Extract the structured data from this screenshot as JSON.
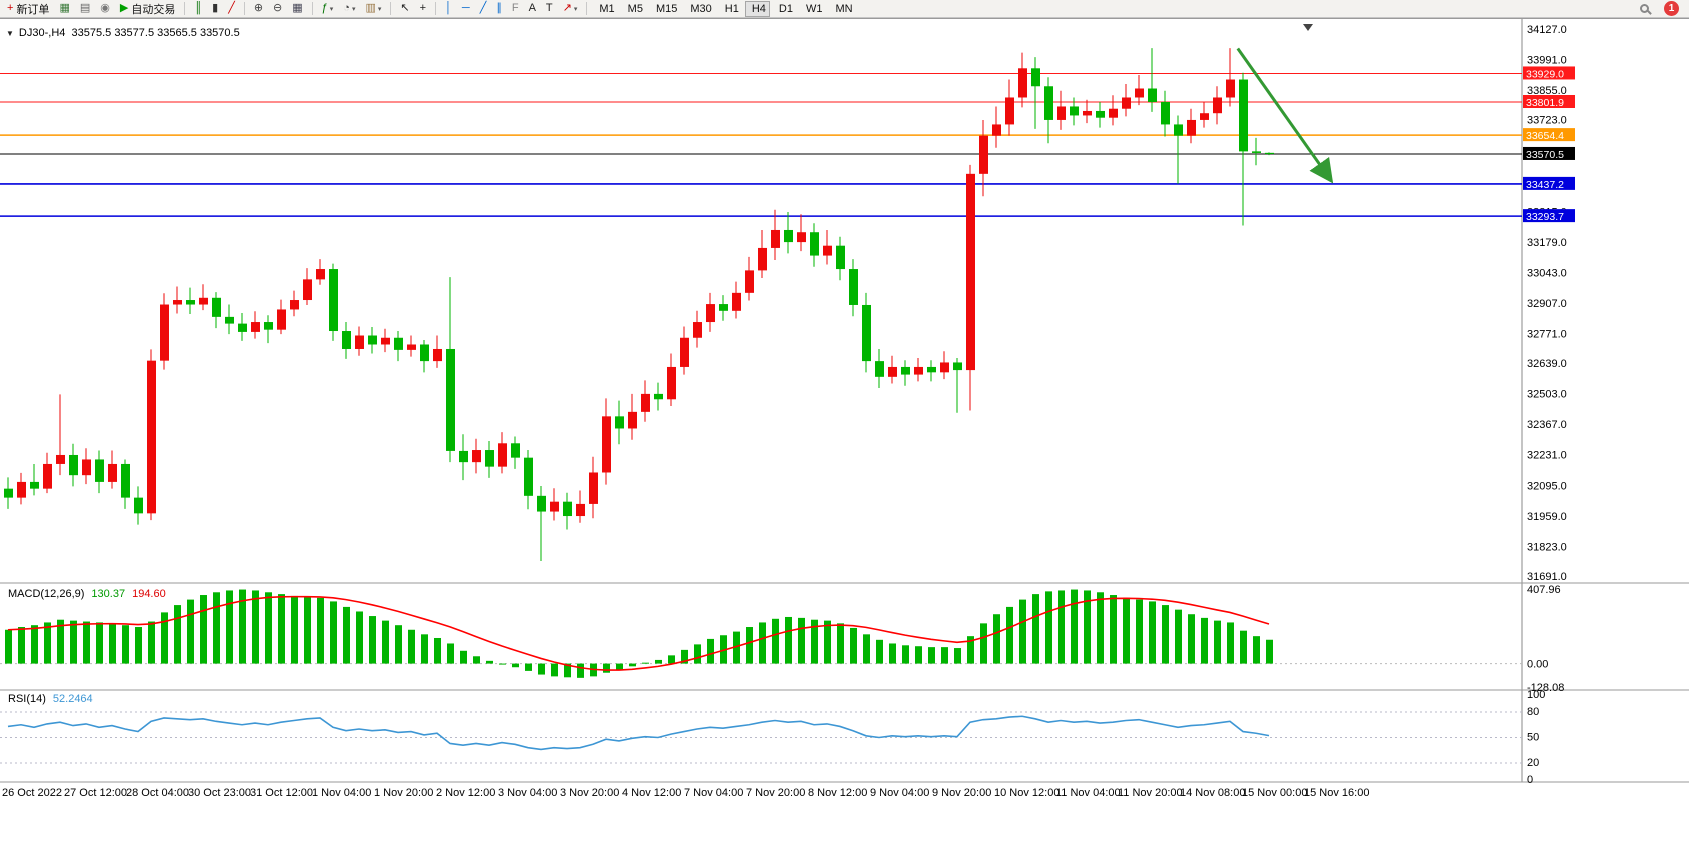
{
  "toolbar": {
    "left_items": [
      {
        "name": "new-order-button",
        "icon": "new-order",
        "label": "新订单"
      },
      {
        "name": "chart-windows-button",
        "icon": "chart-windows"
      },
      {
        "name": "data-window-button",
        "icon": "data-window"
      },
      {
        "name": "navigator-button",
        "icon": "navigator"
      },
      {
        "name": "autotrading-button",
        "icon": "autotrading",
        "label": "自动交易"
      },
      {
        "sep": true
      },
      {
        "name": "bar-chart-button",
        "icon": "bar-chart"
      },
      {
        "name": "candlestick-chart-button",
        "icon": "candlestick-chart"
      },
      {
        "name": "line-chart-button",
        "icon": "line-chart"
      },
      {
        "sep": true
      },
      {
        "name": "zoom-in-button",
        "icon": "zoom-in"
      },
      {
        "name": "zoom-out-button",
        "icon": "zoom-out"
      },
      {
        "name": "tile-windows-button",
        "icon": "tile-windows"
      },
      {
        "sep": true
      },
      {
        "name": "indicators-button",
        "icon": "indicators",
        "caret": true
      },
      {
        "name": "periods-button",
        "icon": "periods",
        "caret": true
      },
      {
        "name": "templates-button",
        "icon": "templates",
        "caret": true
      },
      {
        "sep": true
      },
      {
        "name": "cursor-button",
        "icon": "cursor"
      },
      {
        "name": "crosshair-button",
        "icon": "crosshair"
      },
      {
        "sep": true
      },
      {
        "name": "vertical-line-button",
        "icon": "vertical-line"
      },
      {
        "name": "horizontal-line-button",
        "icon": "horizontal-line"
      },
      {
        "name": "trendline-button",
        "icon": "trendline"
      },
      {
        "name": "channel-button",
        "icon": "channel"
      },
      {
        "name": "fibonacci-button",
        "icon": "fibonacci"
      },
      {
        "name": "text-button",
        "icon": "text"
      },
      {
        "name": "label-button",
        "icon": "label"
      },
      {
        "name": "arrows-button",
        "icon": "arrows",
        "caret": true
      },
      {
        "sep": true
      },
      {
        "name": "tf-m1-button",
        "label": "M1"
      },
      {
        "name": "tf-m5-button",
        "label": "M5"
      },
      {
        "name": "tf-m15-button",
        "label": "M15"
      },
      {
        "name": "tf-m30-button",
        "label": "M30"
      },
      {
        "name": "tf-h1-button",
        "label": "H1"
      },
      {
        "name": "tf-h4-button",
        "label": "H4",
        "active": true
      },
      {
        "name": "tf-d1-button",
        "label": "D1"
      },
      {
        "name": "tf-w1-button",
        "label": "W1"
      },
      {
        "name": "tf-mn-button",
        "label": "MN"
      }
    ],
    "right_items": [
      {
        "name": "search-button",
        "icon": "magnifier"
      },
      {
        "name": "notification-badge",
        "label": "1",
        "badge": true
      }
    ]
  },
  "chart": {
    "title": "DJ30-,H4  33575.5 33577.5 33565.5 33570.5"
  },
  "chart_data": {
    "type": "candlestick",
    "symbol": "DJ30-",
    "timeframe": "H4",
    "current_ohlc": {
      "open": 33575.5,
      "high": 33577.5,
      "low": 33565.5,
      "close": 33570.5
    },
    "ylim": [
      31691.0,
      34127.0
    ],
    "price_ticks": [
      "34127.0",
      "33991.0",
      "33855.0",
      "33723.0",
      "33587.0",
      "33451.0",
      "33315.0",
      "33179.0",
      "33043.0",
      "32907.0",
      "32771.0",
      "32639.0",
      "32503.0",
      "32367.0",
      "32231.0",
      "32095.0",
      "31959.0",
      "31823.0",
      "31691.0"
    ],
    "time_labels": [
      "26 Oct 2022",
      "27 Oct 12:00",
      "28 Oct 04:00",
      "30 Oct 23:00",
      "31 Oct 12:00",
      "1 Nov 04:00",
      "1 Nov 20:00",
      "2 Nov 12:00",
      "3 Nov 04:00",
      "3 Nov 20:00",
      "4 Nov 12:00",
      "7 Nov 04:00",
      "7 Nov 20:00",
      "8 Nov 12:00",
      "9 Nov 04:00",
      "9 Nov 20:00",
      "10 Nov 12:00",
      "11 Nov 04:00",
      "11 Nov 20:00",
      "14 Nov 08:00",
      "15 Nov 00:00",
      "15 Nov 16:00"
    ],
    "colors": {
      "up": "#ee0a0a",
      "down": "#00b400",
      "macd_hist": "#00b400",
      "macd_signal": "#ff0000",
      "rsi_line": "#3d96d4",
      "level_red": "#ff1a1a",
      "level_orange": "#ff9900",
      "level_blue": "#0000dd",
      "current_price_line": "#000000",
      "arrow": "#339933"
    },
    "hlines": [
      {
        "price": 33929.0,
        "color": "red"
      },
      {
        "price": 33801.9,
        "color": "red"
      },
      {
        "price": 33654.4,
        "color": "orange"
      },
      {
        "price": 33437.2,
        "color": "blue"
      },
      {
        "price": 33293.7,
        "color": "blue"
      }
    ],
    "current_price": 33570.5,
    "annotation_arrow": {
      "from": {
        "bar": 94.6,
        "price": 34040
      },
      "to": {
        "bar": 101.8,
        "price": 33450
      }
    },
    "candles_ohlc": [
      [
        32080,
        32130,
        31990,
        32040
      ],
      [
        32040,
        32150,
        32010,
        32110
      ],
      [
        32110,
        32190,
        32050,
        32080
      ],
      [
        32080,
        32240,
        32060,
        32190
      ],
      [
        32190,
        32500,
        32140,
        32230
      ],
      [
        32230,
        32280,
        32090,
        32140
      ],
      [
        32140,
        32260,
        32100,
        32210
      ],
      [
        32210,
        32250,
        32060,
        32110
      ],
      [
        32110,
        32250,
        32080,
        32190
      ],
      [
        32190,
        32210,
        31990,
        32040
      ],
      [
        32040,
        32090,
        31920,
        31970
      ],
      [
        31970,
        32700,
        31940,
        32650
      ],
      [
        32650,
        32950,
        32610,
        32900
      ],
      [
        32900,
        32980,
        32860,
        32920
      ],
      [
        32920,
        32975,
        32858,
        32900
      ],
      [
        32900,
        32990,
        32875,
        32930
      ],
      [
        32930,
        32955,
        32795,
        32845
      ],
      [
        32845,
        32900,
        32768,
        32815
      ],
      [
        32815,
        32862,
        32738,
        32778
      ],
      [
        32778,
        32870,
        32748,
        32822
      ],
      [
        32822,
        32852,
        32728,
        32788
      ],
      [
        32788,
        32922,
        32768,
        32878
      ],
      [
        32878,
        32962,
        32848,
        32920
      ],
      [
        32920,
        33062,
        32898,
        33012
      ],
      [
        33012,
        33102,
        32988,
        33058
      ],
      [
        33058,
        33082,
        32738,
        32782
      ],
      [
        32782,
        32822,
        32658,
        32702
      ],
      [
        32702,
        32802,
        32672,
        32762
      ],
      [
        32762,
        32800,
        32682,
        32722
      ],
      [
        32722,
        32792,
        32688,
        32752
      ],
      [
        32752,
        32782,
        32648,
        32698
      ],
      [
        32698,
        32762,
        32668,
        32722
      ],
      [
        32722,
        32742,
        32598,
        32648
      ],
      [
        32648,
        32762,
        32618,
        32702
      ],
      [
        32702,
        33022,
        32198,
        32248
      ],
      [
        32248,
        32322,
        32118,
        32198
      ],
      [
        32198,
        32302,
        32148,
        32252
      ],
      [
        32252,
        32292,
        32128,
        32178
      ],
      [
        32178,
        32332,
        32148,
        32282
      ],
      [
        32282,
        32312,
        32168,
        32218
      ],
      [
        32218,
        32252,
        31988,
        32048
      ],
      [
        32048,
        32092,
        31758,
        31978
      ],
      [
        31978,
        32082,
        31938,
        32022
      ],
      [
        32022,
        32062,
        31898,
        31958
      ],
      [
        31958,
        32072,
        31928,
        32012
      ],
      [
        32012,
        32222,
        31948,
        32152
      ],
      [
        32152,
        32482,
        32098,
        32402
      ],
      [
        32402,
        32472,
        32278,
        32348
      ],
      [
        32348,
        32502,
        32298,
        32422
      ],
      [
        32422,
        32562,
        32378,
        32502
      ],
      [
        32502,
        32552,
        32428,
        32478
      ],
      [
        32478,
        32682,
        32448,
        32622
      ],
      [
        32622,
        32802,
        32588,
        32752
      ],
      [
        32752,
        32872,
        32708,
        32822
      ],
      [
        32822,
        32952,
        32778,
        32902
      ],
      [
        32902,
        32942,
        32828,
        32872
      ],
      [
        32872,
        33002,
        32838,
        32952
      ],
      [
        32952,
        33112,
        32918,
        33052
      ],
      [
        33052,
        33232,
        33018,
        33152
      ],
      [
        33152,
        33322,
        33098,
        33232
      ],
      [
        33232,
        33312,
        33128,
        33178
      ],
      [
        33178,
        33302,
        33138,
        33222
      ],
      [
        33222,
        33262,
        33068,
        33118
      ],
      [
        33118,
        33232,
        33078,
        33162
      ],
      [
        33162,
        33202,
        33008,
        33058
      ],
      [
        33058,
        33102,
        32848,
        32898
      ],
      [
        32898,
        32952,
        32598,
        32648
      ],
      [
        32648,
        32702,
        32528,
        32578
      ],
      [
        32578,
        32672,
        32548,
        32622
      ],
      [
        32622,
        32652,
        32538,
        32588
      ],
      [
        32588,
        32662,
        32558,
        32622
      ],
      [
        32622,
        32652,
        32558,
        32598
      ],
      [
        32598,
        32692,
        32568,
        32642
      ],
      [
        32642,
        32662,
        32418,
        32608
      ],
      [
        32608,
        33522,
        32428,
        33482
      ],
      [
        33482,
        33722,
        33382,
        33652
      ],
      [
        33652,
        33782,
        33598,
        33702
      ],
      [
        33702,
        33902,
        33652,
        33822
      ],
      [
        33822,
        34022,
        33778,
        33952
      ],
      [
        33952,
        34002,
        33682,
        33872
      ],
      [
        33872,
        33912,
        33618,
        33722
      ],
      [
        33722,
        33852,
        33678,
        33782
      ],
      [
        33782,
        33822,
        33698,
        33742
      ],
      [
        33742,
        33812,
        33708,
        33762
      ],
      [
        33762,
        33802,
        33688,
        33732
      ],
      [
        33732,
        33832,
        33698,
        33772
      ],
      [
        33772,
        33882,
        33738,
        33822
      ],
      [
        33822,
        33922,
        33788,
        33862
      ],
      [
        33862,
        34042,
        33758,
        33802
      ],
      [
        33802,
        33852,
        33648,
        33702
      ],
      [
        33702,
        33742,
        33438,
        33652
      ],
      [
        33652,
        33772,
        33618,
        33722
      ],
      [
        33722,
        33802,
        33688,
        33752
      ],
      [
        33752,
        33872,
        33702,
        33822
      ],
      [
        33822,
        34042,
        33782,
        33902
      ],
      [
        33902,
        33932,
        33252,
        33582
      ],
      [
        33582,
        33642,
        33520,
        33575
      ],
      [
        33575.5,
        33577.5,
        33565.5,
        33570.5
      ]
    ],
    "macd": {
      "label": "MACD(12,26,9)",
      "main_value": "130.37",
      "signal_value": "194.60",
      "axis_ticks": [
        "407.96",
        "0.00",
        "-128.08"
      ],
      "ylim": [
        -128.08,
        407.96
      ],
      "histogram": [
        185,
        200,
        210,
        225,
        240,
        235,
        230,
        225,
        220,
        210,
        200,
        230,
        280,
        320,
        350,
        375,
        390,
        400,
        405,
        400,
        390,
        380,
        370,
        365,
        360,
        340,
        310,
        285,
        260,
        235,
        210,
        185,
        160,
        140,
        110,
        70,
        40,
        15,
        -5,
        -20,
        -40,
        -60,
        -70,
        -75,
        -78,
        -70,
        -50,
        -35,
        -15,
        5,
        20,
        45,
        75,
        105,
        135,
        155,
        175,
        200,
        225,
        245,
        255,
        250,
        240,
        235,
        220,
        195,
        160,
        130,
        110,
        100,
        95,
        90,
        90,
        85,
        150,
        220,
        270,
        310,
        350,
        380,
        395,
        400,
        405,
        400,
        390,
        375,
        360,
        350,
        340,
        320,
        295,
        270,
        250,
        235,
        225,
        180,
        150,
        130.4
      ]
    },
    "rsi": {
      "label": "RSI(14)",
      "value": "52.2464",
      "levels": [
        80,
        50,
        20
      ],
      "axis_ticks": [
        "100",
        "80",
        "50",
        "20",
        "0"
      ],
      "ylim": [
        0,
        100
      ],
      "values": [
        63,
        65,
        62,
        66,
        68,
        64,
        66,
        62,
        64,
        60,
        57,
        69,
        73,
        72,
        71,
        72,
        69,
        67,
        65,
        67,
        65,
        68,
        70,
        72,
        73,
        62,
        58,
        60,
        58,
        59,
        56,
        57,
        53,
        55,
        43,
        41,
        43,
        41,
        44,
        42,
        38,
        36,
        38,
        37,
        38,
        42,
        48,
        46,
        49,
        51,
        50,
        54,
        57,
        60,
        62,
        61,
        63,
        65,
        68,
        70,
        68,
        69,
        65,
        66,
        63,
        58,
        52,
        50,
        52,
        51,
        52,
        51,
        52,
        51,
        68,
        71,
        72,
        74,
        75,
        72,
        68,
        70,
        68,
        69,
        67,
        68,
        70,
        71,
        68,
        65,
        62,
        64,
        65,
        67,
        69,
        57,
        55,
        52.2
      ]
    }
  }
}
